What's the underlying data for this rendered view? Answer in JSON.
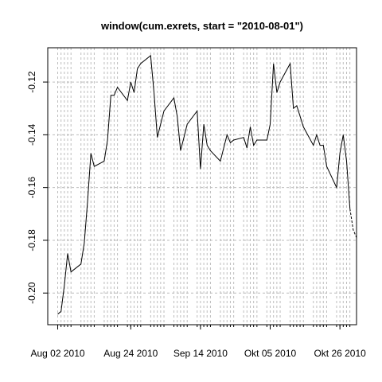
{
  "chart_data": {
    "type": "line",
    "title": "window(cum.exrets, start = \"2010-08-01\")",
    "xlabel": "",
    "ylabel": "",
    "x_tick_labels": [
      "Aug 02 2010",
      "Aug 24 2010",
      "Sep 14 2010",
      "Okt 05 2010",
      "Okt 26 2010"
    ],
    "x_tick_dates": [
      "2010-08-02",
      "2010-08-24",
      "2010-09-14",
      "2010-10-05",
      "2010-10-26"
    ],
    "y_ticks": [
      -0.12,
      -0.14,
      -0.16,
      -0.18,
      -0.2
    ],
    "y_tick_labels": [
      "-0.12",
      "-0.14",
      "-0.16",
      "-0.18",
      "-0.20"
    ],
    "xlim": [
      "2010-07-30",
      "2010-10-31"
    ],
    "ylim": [
      -0.212,
      -0.107
    ],
    "grid": true,
    "series": [
      {
        "color": "#000000",
        "x": [
          "2010-08-02",
          "2010-08-03",
          "2010-08-04",
          "2010-08-05",
          "2010-08-06",
          "2010-08-09",
          "2010-08-10",
          "2010-08-11",
          "2010-08-12",
          "2010-08-13",
          "2010-08-16",
          "2010-08-17",
          "2010-08-18",
          "2010-08-19",
          "2010-08-20",
          "2010-08-23",
          "2010-08-24",
          "2010-08-25",
          "2010-08-26",
          "2010-08-27",
          "2010-08-30",
          "2010-08-31",
          "2010-09-01",
          "2010-09-02",
          "2010-09-03",
          "2010-09-06",
          "2010-09-07",
          "2010-09-08",
          "2010-09-09",
          "2010-09-10",
          "2010-09-13",
          "2010-09-14",
          "2010-09-15",
          "2010-09-16",
          "2010-09-17",
          "2010-09-20",
          "2010-09-21",
          "2010-09-22",
          "2010-09-23",
          "2010-09-24",
          "2010-09-27",
          "2010-09-28",
          "2010-09-29",
          "2010-09-30",
          "2010-10-01",
          "2010-10-04",
          "2010-10-05",
          "2010-10-06",
          "2010-10-07",
          "2010-10-08",
          "2010-10-11",
          "2010-10-12",
          "2010-10-13",
          "2010-10-14",
          "2010-10-15",
          "2010-10-18",
          "2010-10-19",
          "2010-10-20",
          "2010-10-21",
          "2010-10-22",
          "2010-10-25",
          "2010-10-26",
          "2010-10-27",
          "2010-10-28",
          "2010-10-29"
        ],
        "y": [
          -0.208,
          -0.207,
          -0.197,
          -0.185,
          -0.192,
          -0.189,
          -0.181,
          -0.165,
          -0.147,
          -0.152,
          -0.15,
          -0.142,
          -0.125,
          -0.125,
          -0.122,
          -0.127,
          -0.12,
          -0.124,
          -0.115,
          -0.113,
          -0.11,
          -0.124,
          -0.141,
          -0.136,
          -0.131,
          -0.126,
          -0.133,
          -0.146,
          -0.141,
          -0.136,
          -0.131,
          -0.153,
          -0.136,
          -0.144,
          -0.146,
          -0.15,
          -0.145,
          -0.14,
          -0.143,
          -0.142,
          -0.141,
          -0.145,
          -0.137,
          -0.144,
          -0.142,
          -0.142,
          -0.136,
          -0.113,
          -0.124,
          -0.12,
          -0.113,
          -0.13,
          -0.129,
          -0.133,
          -0.137,
          -0.144,
          -0.14,
          -0.144,
          -0.144,
          -0.152,
          -0.16,
          -0.147,
          -0.14,
          -0.15,
          -0.168
        ]
      }
    ],
    "end_segment": {
      "x": [
        "2010-10-29",
        "2010-10-30",
        "2010-10-31"
      ],
      "y": [
        -0.168,
        -0.176,
        -0.179
      ]
    }
  }
}
